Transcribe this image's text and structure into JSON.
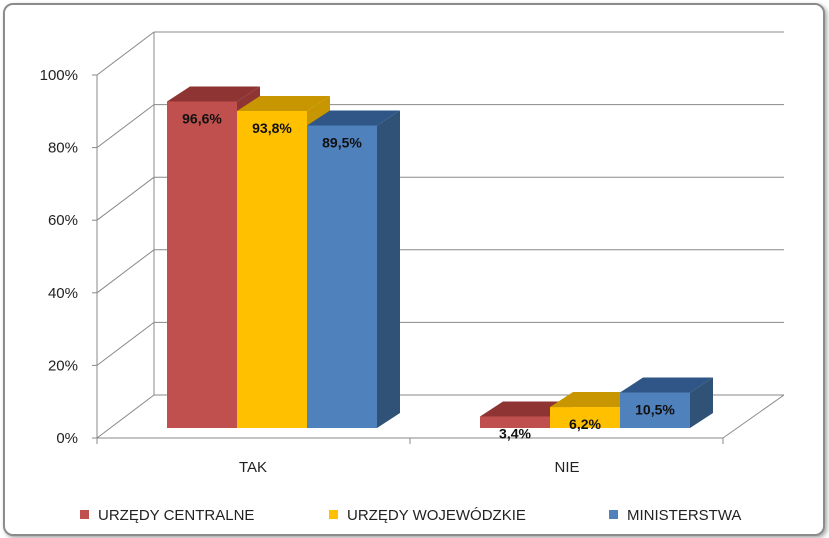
{
  "chart_data": {
    "type": "bar",
    "categories": [
      "TAK",
      "NIE"
    ],
    "series": [
      {
        "name": "URZĘDY CENTRALNE",
        "values": [
          96.6,
          3.4
        ],
        "labels": [
          "96,6%",
          "3,4%"
        ],
        "color": "#C0504D",
        "top_color": "#8E3533",
        "side_color": "#8E3533"
      },
      {
        "name": "URZĘDY WOJEWÓDZKIE",
        "values": [
          93.8,
          6.2
        ],
        "labels": [
          "93,8%",
          "6,2%"
        ],
        "color": "#FFC000",
        "top_color": "#C89600",
        "side_color": "#C89600"
      },
      {
        "name": "MINISTERSTWA",
        "values": [
          89.5,
          10.5
        ],
        "labels": [
          "89,5%",
          "10,5%"
        ],
        "color": "#4F81BD",
        "top_color": "#2F5687",
        "side_color": "#2F5276"
      }
    ],
    "yticks": [
      "0%",
      "20%",
      "40%",
      "60%",
      "80%",
      "100%"
    ],
    "ylim": [
      0,
      100
    ],
    "grid": true,
    "legend_position": "bottom",
    "three_d": true
  }
}
